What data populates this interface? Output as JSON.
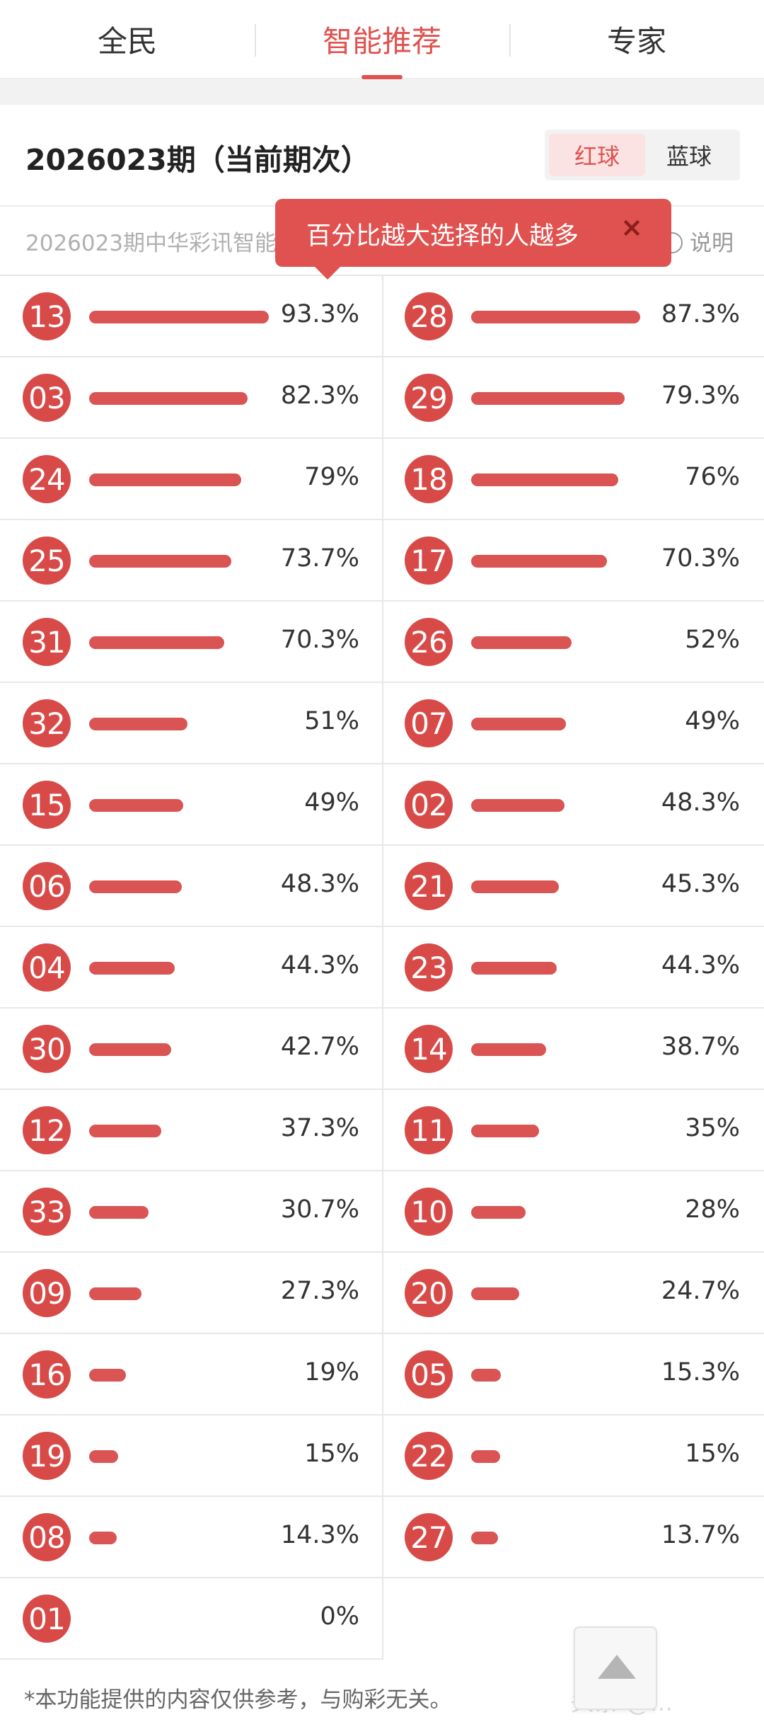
{
  "tabs": [
    {
      "label": "全民",
      "active": false
    },
    {
      "label": "智能推荐",
      "active": true
    },
    {
      "label": "专家",
      "active": false
    }
  ],
  "header": {
    "issue_title": "2026023期（当前期次）",
    "ball_switch": {
      "red": "红球",
      "blue": "蓝球",
      "selected": "红球"
    }
  },
  "subline": {
    "text": "2026023期中华彩讯智能推荐",
    "explain": "说明"
  },
  "tooltip": {
    "text": "百分比越大选择的人越多",
    "close": "×"
  },
  "colors": {
    "accent": "#e0524f",
    "ball": "#d84a47",
    "bar": "#d95452"
  },
  "left_column": [
    {
      "number": "13",
      "percent": "93.3%",
      "value": 93.3
    },
    {
      "number": "03",
      "percent": "82.3%",
      "value": 82.3
    },
    {
      "number": "24",
      "percent": "79%",
      "value": 79
    },
    {
      "number": "25",
      "percent": "73.7%",
      "value": 73.7
    },
    {
      "number": "31",
      "percent": "70.3%",
      "value": 70.3
    },
    {
      "number": "32",
      "percent": "51%",
      "value": 51
    },
    {
      "number": "15",
      "percent": "49%",
      "value": 49
    },
    {
      "number": "06",
      "percent": "48.3%",
      "value": 48.3
    },
    {
      "number": "04",
      "percent": "44.3%",
      "value": 44.3
    },
    {
      "number": "30",
      "percent": "42.7%",
      "value": 42.7
    },
    {
      "number": "12",
      "percent": "37.3%",
      "value": 37.3
    },
    {
      "number": "33",
      "percent": "30.7%",
      "value": 30.7
    },
    {
      "number": "09",
      "percent": "27.3%",
      "value": 27.3
    },
    {
      "number": "16",
      "percent": "19%",
      "value": 19
    },
    {
      "number": "19",
      "percent": "15%",
      "value": 15
    },
    {
      "number": "08",
      "percent": "14.3%",
      "value": 14.3
    },
    {
      "number": "01",
      "percent": "0%",
      "value": 0
    }
  ],
  "right_column": [
    {
      "number": "28",
      "percent": "87.3%",
      "value": 87.3
    },
    {
      "number": "29",
      "percent": "79.3%",
      "value": 79.3
    },
    {
      "number": "18",
      "percent": "76%",
      "value": 76
    },
    {
      "number": "17",
      "percent": "70.3%",
      "value": 70.3
    },
    {
      "number": "26",
      "percent": "52%",
      "value": 52
    },
    {
      "number": "07",
      "percent": "49%",
      "value": 49
    },
    {
      "number": "02",
      "percent": "48.3%",
      "value": 48.3
    },
    {
      "number": "21",
      "percent": "45.3%",
      "value": 45.3
    },
    {
      "number": "23",
      "percent": "44.3%",
      "value": 44.3
    },
    {
      "number": "14",
      "percent": "38.7%",
      "value": 38.7
    },
    {
      "number": "11",
      "percent": "35%",
      "value": 35
    },
    {
      "number": "10",
      "percent": "28%",
      "value": 28
    },
    {
      "number": "20",
      "percent": "24.7%",
      "value": 24.7
    },
    {
      "number": "05",
      "percent": "15.3%",
      "value": 15.3
    },
    {
      "number": "22",
      "percent": "15%",
      "value": 15
    },
    {
      "number": "27",
      "percent": "13.7%",
      "value": 13.7
    }
  ],
  "footer": {
    "note": "*本功能提供的内容仅供参考，与购彩无关。",
    "watermark": "头条 @..."
  },
  "icons": {
    "close": "close-icon",
    "info": "info-icon",
    "back_to_top": "arrow-up-icon"
  }
}
